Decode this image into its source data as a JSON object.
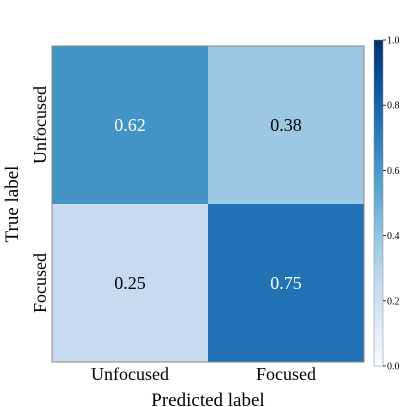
{
  "chart_data": {
    "type": "heatmap",
    "row_labels": [
      "Unfocused",
      "Focused"
    ],
    "col_labels": [
      "Unfocused",
      "Focused"
    ],
    "values": [
      [
        0.62,
        0.38
      ],
      [
        0.25,
        0.75
      ]
    ],
    "cell_texts": [
      [
        "0.62",
        "0.38"
      ],
      [
        "0.25",
        "0.75"
      ]
    ],
    "xlabel": "Predicted label",
    "ylabel": "True label",
    "colorbar": {
      "range": [
        0.0,
        1.0
      ],
      "ticks": [
        0.0,
        0.2,
        0.4,
        0.6,
        0.8,
        1.0
      ],
      "tick_labels": [
        "0.0",
        "0.2",
        "0.4",
        "0.6",
        "0.8",
        "1.0"
      ],
      "colormap": "Blues"
    }
  }
}
